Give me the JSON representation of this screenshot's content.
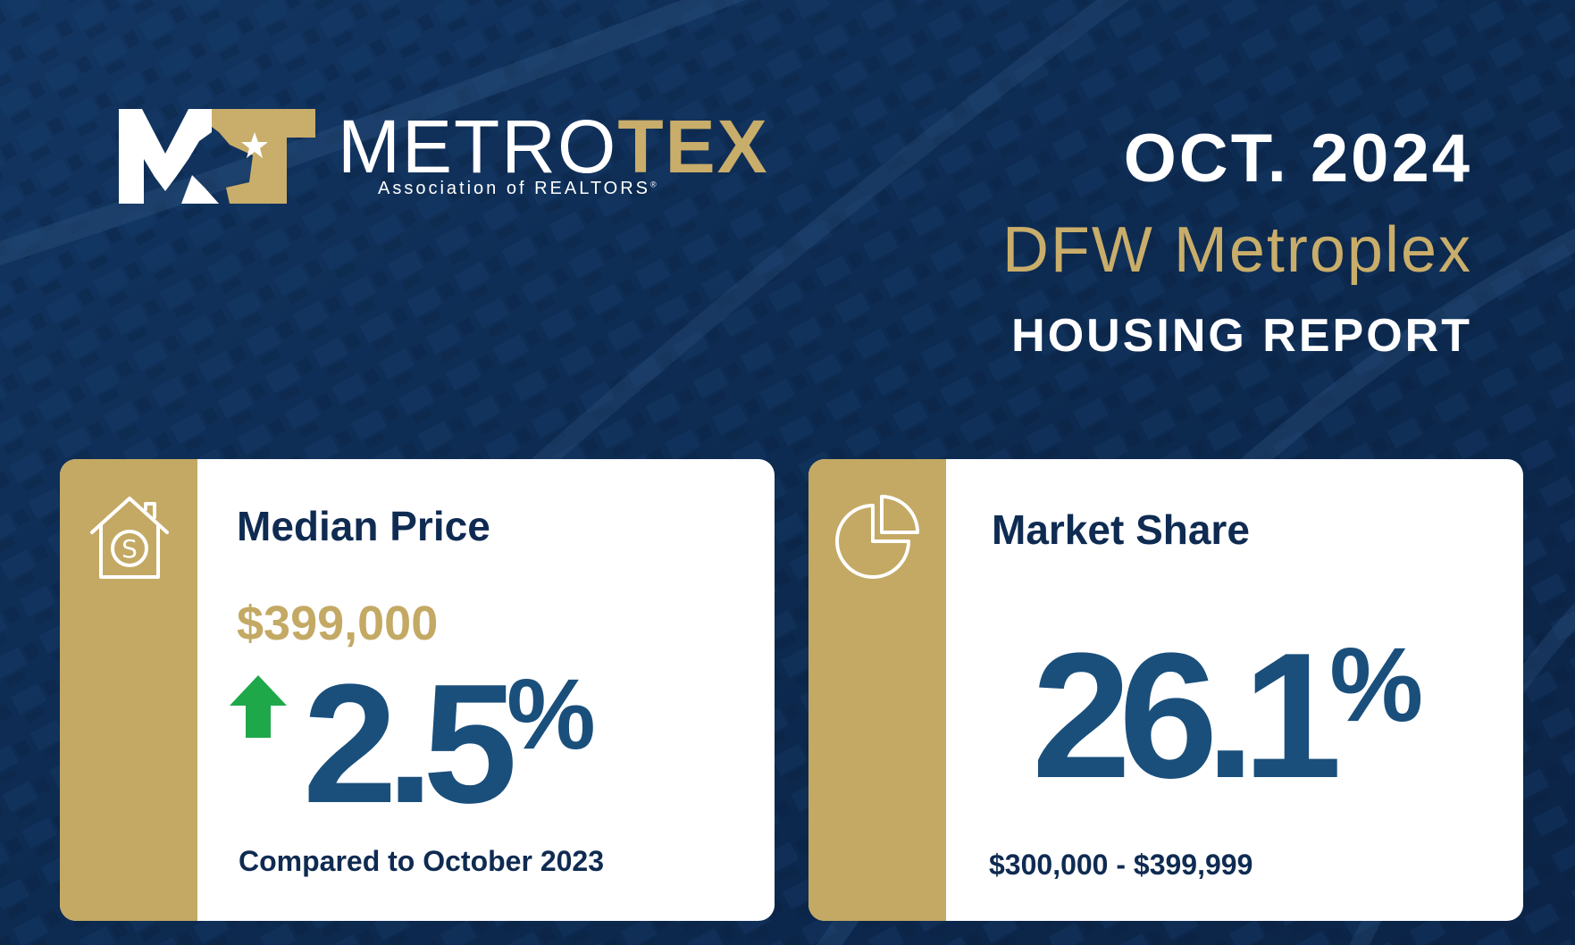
{
  "colors": {
    "background": "#0e2a52",
    "gold": "#c3a964",
    "navy_text": "#0f2b52",
    "blue_value": "#1a4f7c",
    "up_arrow": "#1fa84a"
  },
  "logo": {
    "wordmark_light": "METRO",
    "wordmark_bold": "TEX",
    "subtitle": "Association of REALTORS",
    "registered_mark": "®"
  },
  "header": {
    "date": "OCT. 2024",
    "region": "DFW Metroplex",
    "report": "HOUSING REPORT"
  },
  "median_price_card": {
    "icon": "house-dollar-icon",
    "title": "Median Price",
    "price": "$399,000",
    "trend_icon": "up-arrow-icon",
    "change_value": "2.5",
    "change_unit": "%",
    "note": "Compared to October 2023"
  },
  "market_share_card": {
    "icon": "pie-chart-icon",
    "title": "Market Share",
    "value": "26.1",
    "unit": "%",
    "range": "$300,000 - $399,999"
  }
}
